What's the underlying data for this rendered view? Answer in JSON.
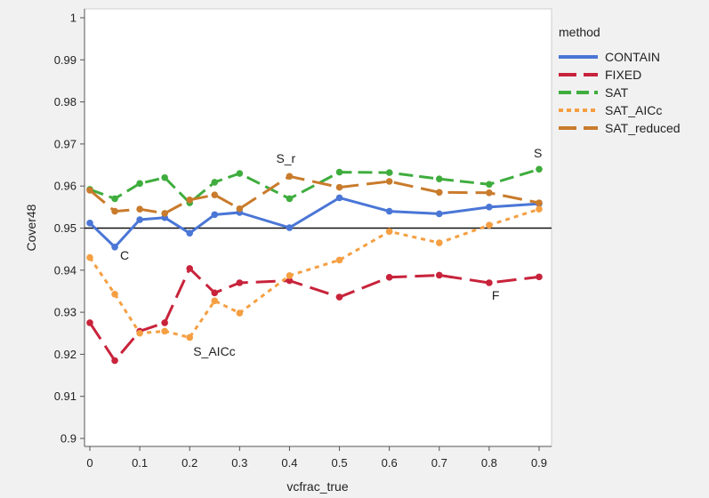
{
  "chart_data": {
    "type": "line",
    "xlabel": "vcfrac_true",
    "ylabel": "Cover48",
    "xlim": [
      0,
      0.9
    ],
    "ylim": [
      0.9,
      1.0
    ],
    "x_ticks": [
      "0",
      "0.1",
      "0.2",
      "0.3",
      "0.4",
      "0.5",
      "0.6",
      "0.7",
      "0.8",
      "0.9"
    ],
    "y_ticks": [
      "0.9",
      "0.91",
      "0.92",
      "0.93",
      "0.94",
      "0.95",
      "0.96",
      "0.97",
      "0.98",
      "0.99",
      "1"
    ],
    "reference_line": 0.95,
    "legend_title": "method",
    "legend_position": "right",
    "grid": false,
    "series": [
      {
        "name": "CONTAIN",
        "color": "#4a76d6",
        "dash": "solid",
        "x": [
          0,
          0.05,
          0.1,
          0.15,
          0.2,
          0.25,
          0.3,
          0.4,
          0.5,
          0.6,
          0.7,
          0.8,
          0.9
        ],
        "values": [
          0.9512,
          0.9455,
          0.952,
          0.9525,
          0.9488,
          0.9532,
          0.9537,
          0.9501,
          0.9572,
          0.954,
          0.9534,
          0.955,
          0.9558
        ]
      },
      {
        "name": "FIXED",
        "color": "#c8233b",
        "dash": "longdash",
        "x": [
          0,
          0.05,
          0.1,
          0.15,
          0.2,
          0.25,
          0.3,
          0.4,
          0.5,
          0.6,
          0.7,
          0.8,
          0.9
        ],
        "values": [
          0.9275,
          0.9185,
          0.9255,
          0.9275,
          0.9404,
          0.9346,
          0.937,
          0.9375,
          0.9336,
          0.9383,
          0.9388,
          0.937,
          0.9384
        ]
      },
      {
        "name": "SAT",
        "color": "#3fad3e",
        "dash": "dash",
        "x": [
          0,
          0.05,
          0.1,
          0.15,
          0.2,
          0.25,
          0.3,
          0.4,
          0.5,
          0.6,
          0.7,
          0.8,
          0.9
        ],
        "values": [
          0.9592,
          0.957,
          0.9606,
          0.962,
          0.956,
          0.9609,
          0.963,
          0.957,
          0.9633,
          0.9632,
          0.9617,
          0.9604,
          0.964
        ]
      },
      {
        "name": "SAT_AICc",
        "color": "#f59f42",
        "dash": "dot",
        "x": [
          0,
          0.05,
          0.1,
          0.15,
          0.2,
          0.25,
          0.3,
          0.4,
          0.5,
          0.6,
          0.7,
          0.8,
          0.9
        ],
        "values": [
          0.943,
          0.9343,
          0.925,
          0.9255,
          0.924,
          0.9327,
          0.9298,
          0.9387,
          0.9424,
          0.9492,
          0.9465,
          0.9507,
          0.9545
        ]
      },
      {
        "name": "SAT_reduced",
        "color": "#c97b2c",
        "dash": "longdash",
        "x": [
          0,
          0.05,
          0.1,
          0.15,
          0.2,
          0.25,
          0.3,
          0.4,
          0.5,
          0.6,
          0.7,
          0.8,
          0.9
        ],
        "values": [
          0.959,
          0.954,
          0.9545,
          0.9535,
          0.9567,
          0.9579,
          0.9546,
          0.9623,
          0.9597,
          0.9611,
          0.9585,
          0.9584,
          0.956
        ]
      }
    ],
    "annotations": [
      {
        "text": "C",
        "x": 0.05,
        "y": 0.945
      },
      {
        "text": "S_AICc",
        "x": 0.2,
        "y": 0.9235
      },
      {
        "text": "S_r",
        "x": 0.4,
        "y": 0.9632
      },
      {
        "text": "S",
        "x": 0.9,
        "y": 0.9645
      },
      {
        "text": "F",
        "x": 0.8,
        "y": 0.937
      }
    ]
  }
}
